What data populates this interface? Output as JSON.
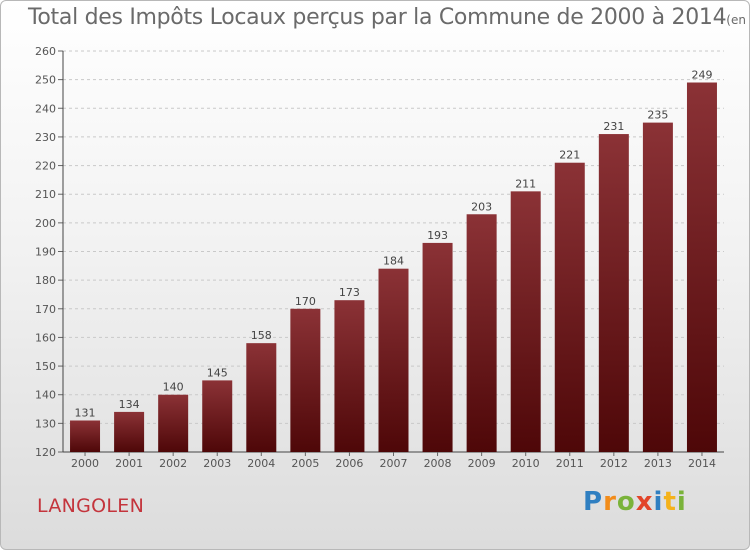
{
  "title": "Total des Impôts Locaux perçus par la Commune de 2000 à 2014",
  "title_unit": "(en milliers d'€)",
  "commune": "LANGOLEN",
  "brand": "Proxiti",
  "colors": {
    "bar_top": "#8b3236",
    "bar_bottom": "#4e0708",
    "commune": "#c4343c"
  },
  "chart_data": {
    "type": "bar",
    "categories": [
      "2000",
      "2001",
      "2002",
      "2003",
      "2004",
      "2005",
      "2006",
      "2007",
      "2008",
      "2009",
      "2010",
      "2011",
      "2012",
      "2013",
      "2014"
    ],
    "values": [
      131,
      134,
      140,
      145,
      158,
      170,
      173,
      184,
      193,
      203,
      211,
      221,
      231,
      235,
      249
    ],
    "xlabel": "",
    "ylabel": "",
    "ylim": [
      120,
      260
    ],
    "yticks": [
      120,
      130,
      140,
      150,
      160,
      170,
      180,
      190,
      200,
      210,
      220,
      230,
      240,
      250,
      260
    ],
    "grid": true,
    "data_labels": true
  }
}
